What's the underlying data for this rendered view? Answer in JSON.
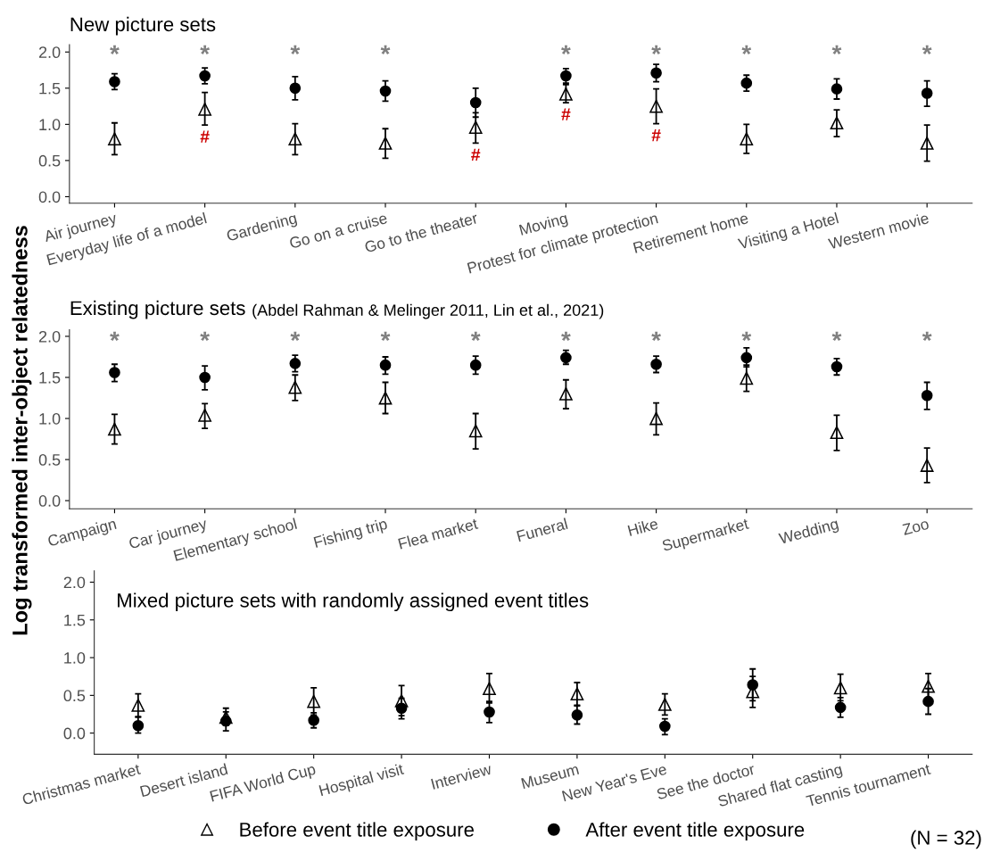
{
  "chart_data": [
    {
      "type": "scatter",
      "title": "New picture sets",
      "categories": [
        "Air journey",
        "Everyday life of a model",
        "Gardening",
        "Go on a cruise",
        "Go to the theater",
        "Moving",
        "Protest for climate protection",
        "Retirement home",
        "Visiting a Hotel",
        "Western movie"
      ],
      "series": [
        {
          "name": "Before event title exposure",
          "color": "#000000",
          "marker": "triangle",
          "values": [
            0.8,
            1.21,
            0.8,
            0.74,
            0.96,
            1.42,
            1.25,
            0.8,
            1.02,
            0.74
          ],
          "errors": [
            [
              0.58,
              1.02
            ],
            [
              0.99,
              1.44
            ],
            [
              0.58,
              1.01
            ],
            [
              0.53,
              0.94
            ],
            [
              0.74,
              1.16
            ],
            [
              1.3,
              1.55
            ],
            [
              1.01,
              1.49
            ],
            [
              0.6,
              1.0
            ],
            [
              0.83,
              1.2
            ],
            [
              0.49,
              0.99
            ]
          ],
          "value_labels": [
            null,
            "#",
            null,
            null,
            "#",
            "#",
            "#",
            null,
            null,
            null
          ]
        },
        {
          "name": "After event title exposure",
          "color": "#000000",
          "marker": "circle",
          "values": [
            1.59,
            1.67,
            1.5,
            1.46,
            1.3,
            1.67,
            1.71,
            1.57,
            1.49,
            1.43
          ],
          "errors": [
            [
              1.48,
              1.7
            ],
            [
              1.56,
              1.78
            ],
            [
              1.34,
              1.66
            ],
            [
              1.32,
              1.6
            ],
            [
              1.1,
              1.5
            ],
            [
              1.57,
              1.77
            ],
            [
              1.59,
              1.83
            ],
            [
              1.46,
              1.68
            ],
            [
              1.35,
              1.63
            ],
            [
              1.25,
              1.6
            ]
          ],
          "value_labels": [
            "*",
            "*",
            "*",
            "*",
            null,
            "*",
            "*",
            "*",
            "*",
            "*"
          ]
        }
      ],
      "ylim": [
        -0.09,
        2.1
      ],
      "yticks": [
        {
          "value": 0,
          "label": "0.0"
        },
        {
          "value": 0.5,
          "label": "0.5"
        },
        {
          "value": 1,
          "label": "1.0"
        },
        {
          "value": 1.5,
          "label": "1.5"
        },
        {
          "value": 2,
          "label": "2.0"
        }
      ],
      "legend": "bottom"
    },
    {
      "type": "scatter",
      "title": "Existing picture sets",
      "subtitle": "(Abdel Rahman & Melinger 2011, Lin et al., 2021)",
      "ylabel": "Log transformed inter-object relatedness",
      "categories": [
        "Campaign",
        "Car journey",
        "Elementary school",
        "Fishing trip",
        "Flea market",
        "Funeral",
        "Hike",
        "Supermarket",
        "Wedding",
        "Zoo"
      ],
      "series": [
        {
          "color": "#000000",
          "marker": "triangle",
          "values": [
            0.87,
            1.04,
            1.38,
            1.25,
            0.85,
            1.3,
            1.0,
            1.49,
            0.83,
            0.43
          ],
          "errors": [
            [
              0.69,
              1.05
            ],
            [
              0.88,
              1.18
            ],
            [
              1.22,
              1.53
            ],
            [
              1.06,
              1.44
            ],
            [
              0.63,
              1.06
            ],
            [
              1.12,
              1.47
            ],
            [
              0.8,
              1.19
            ],
            [
              1.33,
              1.65
            ],
            [
              0.61,
              1.04
            ],
            [
              0.22,
              0.64
            ]
          ]
        },
        {
          "color": "#000000",
          "marker": "circle",
          "values": [
            1.56,
            1.5,
            1.67,
            1.65,
            1.65,
            1.74,
            1.66,
            1.74,
            1.63,
            1.28
          ],
          "errors": [
            [
              1.45,
              1.66
            ],
            [
              1.35,
              1.64
            ],
            [
              1.57,
              1.77
            ],
            [
              1.54,
              1.75
            ],
            [
              1.54,
              1.76
            ],
            [
              1.66,
              1.83
            ],
            [
              1.56,
              1.76
            ],
            [
              1.63,
              1.86
            ],
            [
              1.53,
              1.73
            ],
            [
              1.11,
              1.44
            ]
          ],
          "value_labels": [
            "*",
            "*",
            "*",
            "*",
            "*",
            "*",
            "*",
            "*",
            "*",
            "*"
          ]
        }
      ],
      "ylim": [
        -0.1,
        2.08
      ],
      "yticks": [
        {
          "value": 0,
          "label": "0.0"
        },
        {
          "value": 0.5,
          "label": "0.5"
        },
        {
          "value": 1,
          "label": "1.0"
        },
        {
          "value": 1.5,
          "label": "1.5"
        },
        {
          "value": 2,
          "label": "2.0"
        }
      ]
    },
    {
      "type": "scatter",
      "title": "Mixed picture sets with randomly assigned event titles",
      "categories": [
        "Christmas market",
        "Desert island",
        "FIFA World Cup",
        "Hospital visit",
        "Interview",
        "Museum",
        "New Year's Eve",
        "See the doctor",
        "Shared flat casting",
        "Tennis tournament"
      ],
      "series": [
        {
          "color": "#000000",
          "marker": "triangle",
          "values": [
            0.37,
            0.21,
            0.42,
            0.43,
            0.59,
            0.52,
            0.38,
            0.55,
            0.6,
            0.62
          ],
          "errors": [
            [
              0.22,
              0.52
            ],
            [
              0.1,
              0.33
            ],
            [
              0.24,
              0.6
            ],
            [
              0.23,
              0.63
            ],
            [
              0.4,
              0.79
            ],
            [
              0.37,
              0.67
            ],
            [
              0.24,
              0.52
            ],
            [
              0.34,
              0.75
            ],
            [
              0.43,
              0.78
            ],
            [
              0.46,
              0.79
            ]
          ]
        },
        {
          "color": "#000000",
          "marker": "circle",
          "values": [
            0.1,
            0.16,
            0.17,
            0.33,
            0.28,
            0.24,
            0.09,
            0.64,
            0.34,
            0.42
          ],
          "errors": [
            [
              0.0,
              0.21
            ],
            [
              0.03,
              0.28
            ],
            [
              0.07,
              0.27
            ],
            [
              0.19,
              0.46
            ],
            [
              0.14,
              0.42
            ],
            [
              0.12,
              0.36
            ],
            [
              -0.02,
              0.19
            ],
            [
              0.43,
              0.85
            ],
            [
              0.21,
              0.47
            ],
            [
              0.25,
              0.59
            ]
          ]
        }
      ],
      "ylim": [
        -0.28,
        2.15
      ],
      "yticks": [
        {
          "value": 0,
          "label": "0.0"
        },
        {
          "value": 0.5,
          "label": "0.5"
        },
        {
          "value": 1,
          "label": "1.0"
        },
        {
          "value": 1.5,
          "label": "1.5"
        },
        {
          "value": 2,
          "label": "2.0"
        }
      ],
      "annotations": [
        "(N = 32)"
      ]
    }
  ]
}
